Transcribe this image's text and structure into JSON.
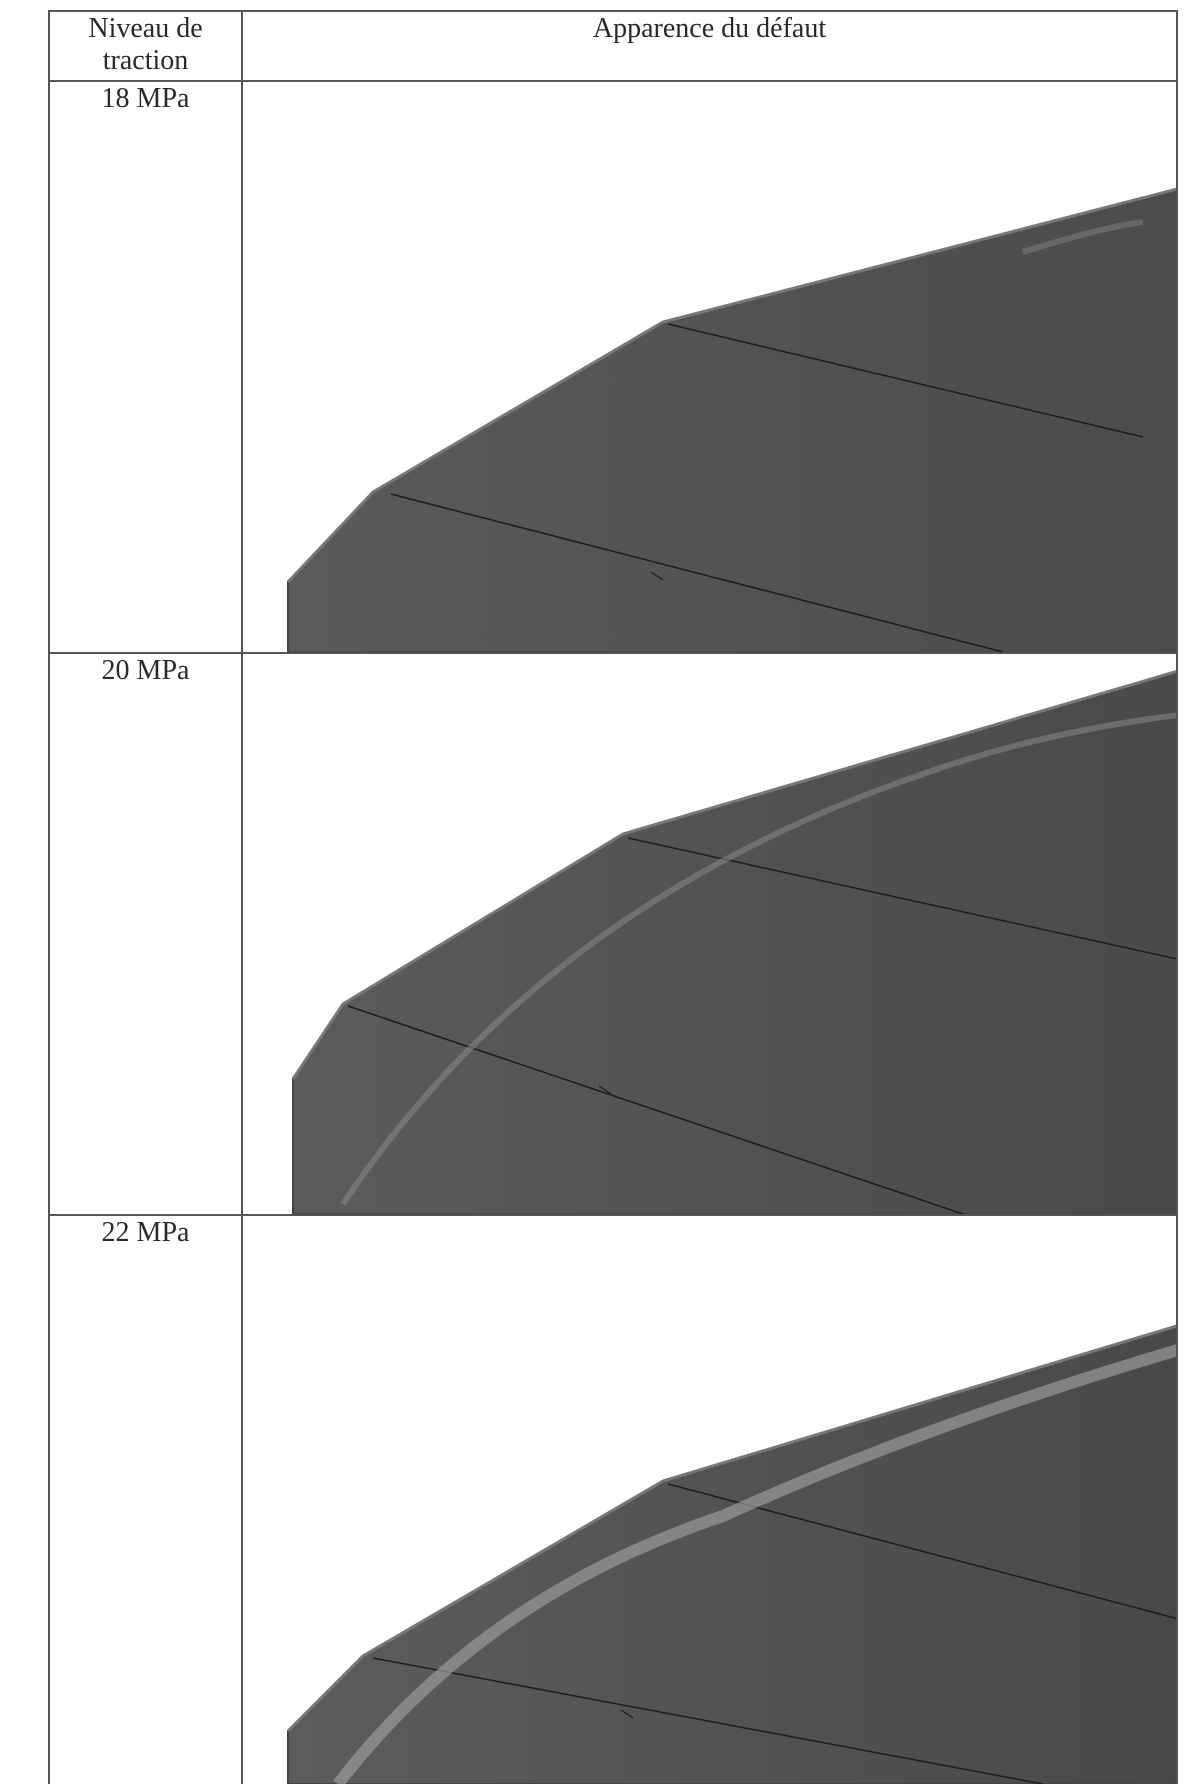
{
  "table": {
    "header": {
      "col1": [
        "Niveau de",
        "traction"
      ],
      "col2": "Apparence du défaut"
    },
    "rows": [
      {
        "level": "18 MPa"
      },
      {
        "level": "20 MPa"
      },
      {
        "level": "22 MPa"
      }
    ]
  }
}
